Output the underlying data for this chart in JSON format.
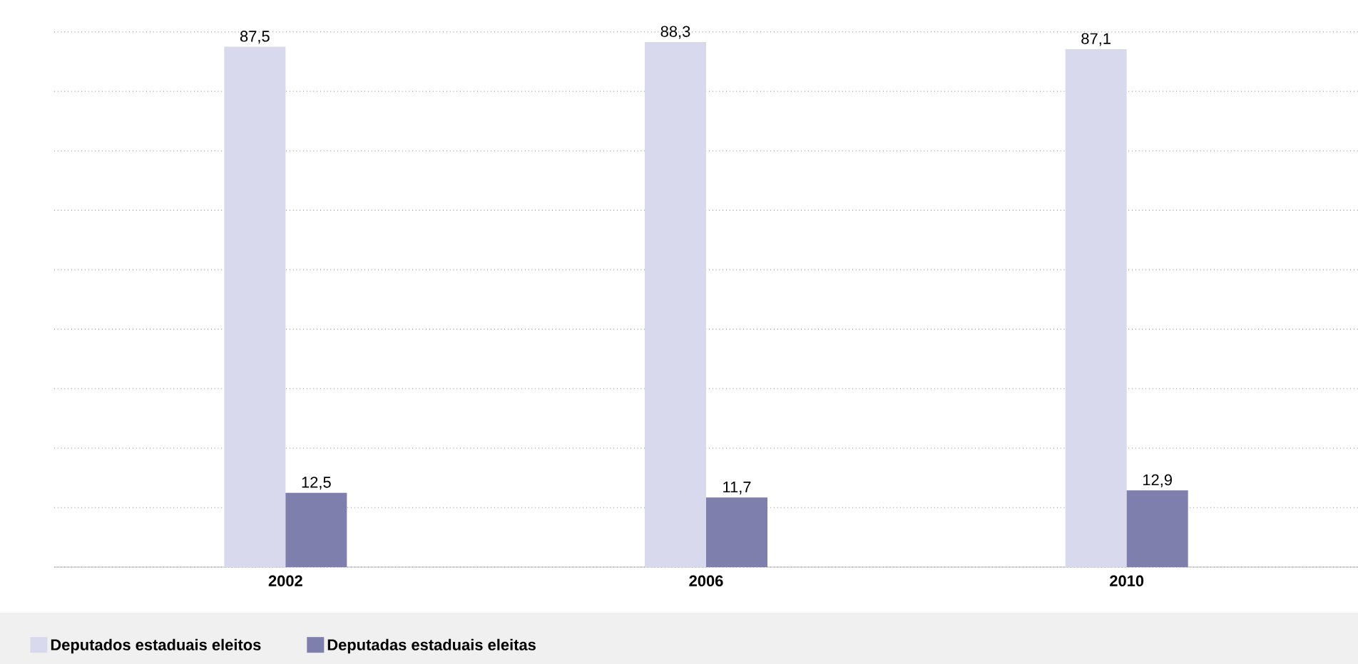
{
  "chart_data": {
    "type": "bar",
    "categories": [
      "2002",
      "2006",
      "2010"
    ],
    "series": [
      {
        "name": "Deputados estaduais eleitos",
        "color": "#d9d9ee",
        "values": [
          87.5,
          88.3,
          87.1
        ],
        "value_labels": [
          "87,5",
          "88,3",
          "87,1"
        ]
      },
      {
        "name": "Deputadas estaduais eleitas",
        "color": "#7f7fad",
        "values": [
          12.5,
          11.7,
          12.9
        ],
        "value_labels": [
          "12,5",
          "11,7",
          "12,9"
        ]
      }
    ],
    "tick_labels": "x",
    "grid": "y",
    "legend": "bottom"
  }
}
